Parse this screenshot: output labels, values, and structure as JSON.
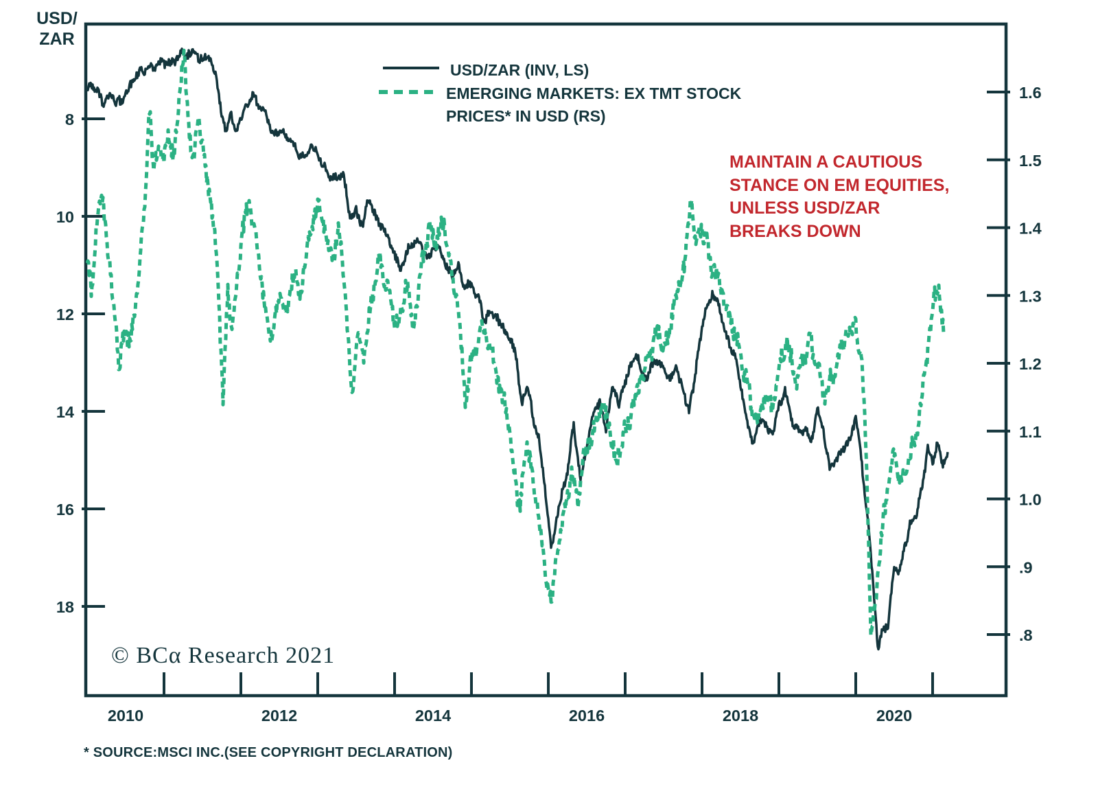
{
  "colors": {
    "dark": "#14353c",
    "green": "#2bb183",
    "red": "#c2272d",
    "background": "#ffffff"
  },
  "left_axis_title": "USD/\nZAR",
  "legend": {
    "items": [
      {
        "label": "USD/ZAR (INV, LS)",
        "style": "solid"
      },
      {
        "label": "EMERGING MARKETS: EX TMT STOCK\nPRICES* IN USD (RS)",
        "style": "dashed"
      }
    ]
  },
  "annotation": {
    "text": "MAINTAIN A CAUTIOUS\nSTANCE ON EM EQUITIES,\nUNLESS USD/ZAR\nBREAKS DOWN"
  },
  "watermark": "© BCα Research 2021",
  "footnote": "* SOURCE:MSCI INC.(SEE COPYRIGHT DECLARATION)",
  "chart_data": {
    "type": "line",
    "title": "",
    "grid": false,
    "legend_position": "top-center",
    "x_axis": {
      "range": [
        2010,
        2022
      ],
      "tick_years": [
        2011,
        2012,
        2013,
        2014,
        2015,
        2016,
        2017,
        2018,
        2019,
        2020,
        2021
      ],
      "labels": [
        "2010",
        "2012",
        "2014",
        "2016",
        "2018",
        "2020"
      ],
      "label_center_years": [
        2010.5,
        2012.5,
        2014.5,
        2016.5,
        2018.5,
        2020.5
      ]
    },
    "left_axis": {
      "title": "USD/ZAR",
      "inverted": true,
      "ticks": [
        8,
        10,
        12,
        14,
        16,
        18
      ],
      "tick_labels": [
        "8",
        "10",
        "12",
        "14",
        "16",
        "18"
      ],
      "top_value": 6.06,
      "bottom_value": 19.83
    },
    "right_axis": {
      "ticks": [
        1.6,
        1.5,
        1.4,
        1.3,
        1.2,
        1.1,
        1.0,
        0.9,
        0.8
      ],
      "tick_labels": [
        "1.6",
        "1.5",
        "1.4",
        "1.3",
        "1.2",
        "1.1",
        "1.0",
        ".9",
        ".8"
      ],
      "top_value": 1.7,
      "bottom_value": 0.71
    },
    "series": [
      {
        "name": "USD/ZAR (INV, LS)",
        "axis": "left",
        "color": "#14353c",
        "line": "solid",
        "width": 3.5,
        "noise": 0.1,
        "points": [
          [
            2010.0,
            7.45
          ],
          [
            2010.06,
            7.28
          ],
          [
            2010.13,
            7.4
          ],
          [
            2010.21,
            7.72
          ],
          [
            2010.29,
            7.52
          ],
          [
            2010.38,
            7.7
          ],
          [
            2010.46,
            7.6
          ],
          [
            2010.54,
            7.35
          ],
          [
            2010.63,
            7.1
          ],
          [
            2010.71,
            7.0
          ],
          [
            2010.79,
            6.95
          ],
          [
            2010.88,
            6.88
          ],
          [
            2010.96,
            6.8
          ],
          [
            2011.04,
            6.9
          ],
          [
            2011.13,
            6.83
          ],
          [
            2011.21,
            6.62
          ],
          [
            2011.29,
            6.72
          ],
          [
            2011.38,
            6.6
          ],
          [
            2011.46,
            6.82
          ],
          [
            2011.54,
            6.7
          ],
          [
            2011.63,
            6.9
          ],
          [
            2011.68,
            7.15
          ],
          [
            2011.75,
            7.95
          ],
          [
            2011.81,
            8.3
          ],
          [
            2011.86,
            7.85
          ],
          [
            2011.92,
            8.2
          ],
          [
            2012.0,
            8.05
          ],
          [
            2012.08,
            7.62
          ],
          [
            2012.17,
            7.55
          ],
          [
            2012.25,
            7.78
          ],
          [
            2012.33,
            7.9
          ],
          [
            2012.42,
            8.38
          ],
          [
            2012.5,
            8.22
          ],
          [
            2012.58,
            8.28
          ],
          [
            2012.67,
            8.48
          ],
          [
            2012.75,
            8.7
          ],
          [
            2012.83,
            8.78
          ],
          [
            2012.92,
            8.58
          ],
          [
            2013.0,
            8.78
          ],
          [
            2013.08,
            8.98
          ],
          [
            2013.17,
            9.2
          ],
          [
            2013.25,
            9.22
          ],
          [
            2013.33,
            9.15
          ],
          [
            2013.42,
            10.0
          ],
          [
            2013.5,
            9.88
          ],
          [
            2013.58,
            10.25
          ],
          [
            2013.66,
            9.65
          ],
          [
            2013.75,
            10.02
          ],
          [
            2013.83,
            10.18
          ],
          [
            2013.92,
            10.45
          ],
          [
            2014.0,
            10.8
          ],
          [
            2014.07,
            11.12
          ],
          [
            2014.17,
            10.72
          ],
          [
            2014.25,
            10.58
          ],
          [
            2014.33,
            10.52
          ],
          [
            2014.42,
            10.9
          ],
          [
            2014.5,
            10.62
          ],
          [
            2014.58,
            10.68
          ],
          [
            2014.67,
            11.0
          ],
          [
            2014.75,
            11.25
          ],
          [
            2014.83,
            11.05
          ],
          [
            2014.92,
            11.45
          ],
          [
            2015.0,
            11.45
          ],
          [
            2015.08,
            11.7
          ],
          [
            2015.17,
            12.1
          ],
          [
            2015.25,
            11.95
          ],
          [
            2015.33,
            12.1
          ],
          [
            2015.42,
            12.3
          ],
          [
            2015.5,
            12.5
          ],
          [
            2015.58,
            12.8
          ],
          [
            2015.65,
            13.9
          ],
          [
            2015.72,
            13.45
          ],
          [
            2015.8,
            14.1
          ],
          [
            2015.88,
            14.55
          ],
          [
            2015.96,
            15.6
          ],
          [
            2016.04,
            16.85
          ],
          [
            2016.1,
            16.2
          ],
          [
            2016.17,
            15.8
          ],
          [
            2016.25,
            15.2
          ],
          [
            2016.33,
            14.3
          ],
          [
            2016.42,
            15.45
          ],
          [
            2016.5,
            14.7
          ],
          [
            2016.58,
            14.05
          ],
          [
            2016.67,
            13.75
          ],
          [
            2016.75,
            14.4
          ],
          [
            2016.83,
            13.5
          ],
          [
            2016.92,
            13.8
          ],
          [
            2017.0,
            13.4
          ],
          [
            2017.08,
            13.0
          ],
          [
            2017.17,
            12.9
          ],
          [
            2017.25,
            13.4
          ],
          [
            2017.33,
            13.1
          ],
          [
            2017.42,
            12.95
          ],
          [
            2017.5,
            13.1
          ],
          [
            2017.58,
            13.35
          ],
          [
            2017.67,
            13.05
          ],
          [
            2017.75,
            13.55
          ],
          [
            2017.83,
            14.0
          ],
          [
            2017.9,
            13.4
          ],
          [
            2017.97,
            12.55
          ],
          [
            2018.05,
            11.95
          ],
          [
            2018.13,
            11.6
          ],
          [
            2018.22,
            11.85
          ],
          [
            2018.32,
            12.5
          ],
          [
            2018.42,
            12.85
          ],
          [
            2018.5,
            13.4
          ],
          [
            2018.58,
            14.2
          ],
          [
            2018.67,
            14.65
          ],
          [
            2018.75,
            14.15
          ],
          [
            2018.83,
            14.35
          ],
          [
            2018.92,
            14.45
          ],
          [
            2019.0,
            13.9
          ],
          [
            2019.08,
            13.55
          ],
          [
            2019.17,
            14.2
          ],
          [
            2019.25,
            14.45
          ],
          [
            2019.33,
            14.35
          ],
          [
            2019.42,
            14.6
          ],
          [
            2019.5,
            14.0
          ],
          [
            2019.58,
            14.35
          ],
          [
            2019.66,
            15.15
          ],
          [
            2019.75,
            15.0
          ],
          [
            2019.83,
            14.75
          ],
          [
            2019.92,
            14.6
          ],
          [
            2020.0,
            14.05
          ],
          [
            2020.08,
            15.05
          ],
          [
            2020.17,
            16.5
          ],
          [
            2020.24,
            17.8
          ],
          [
            2020.29,
            18.9
          ],
          [
            2020.35,
            18.45
          ],
          [
            2020.42,
            18.4
          ],
          [
            2020.5,
            17.1
          ],
          [
            2020.56,
            17.35
          ],
          [
            2020.63,
            16.85
          ],
          [
            2020.71,
            16.3
          ],
          [
            2020.79,
            16.1
          ],
          [
            2020.87,
            15.5
          ],
          [
            2020.94,
            14.7
          ],
          [
            2021.0,
            15.15
          ],
          [
            2021.06,
            14.65
          ],
          [
            2021.13,
            15.1
          ],
          [
            2021.2,
            14.9
          ]
        ]
      },
      {
        "name": "EMERGING MARKETS: EX TMT STOCK PRICES* IN USD (RS)",
        "axis": "right",
        "color": "#2bb183",
        "line": "dashed",
        "dash": [
          9,
          7
        ],
        "width": 5,
        "noise": 0.016,
        "points": [
          [
            2010.0,
            1.37
          ],
          [
            2010.06,
            1.3
          ],
          [
            2010.13,
            1.42
          ],
          [
            2010.21,
            1.43
          ],
          [
            2010.3,
            1.33
          ],
          [
            2010.38,
            1.26
          ],
          [
            2010.42,
            1.19
          ],
          [
            2010.5,
            1.26
          ],
          [
            2010.56,
            1.22
          ],
          [
            2010.65,
            1.31
          ],
          [
            2010.73,
            1.39
          ],
          [
            2010.81,
            1.585
          ],
          [
            2010.86,
            1.48
          ],
          [
            2010.92,
            1.52
          ],
          [
            2011.0,
            1.5
          ],
          [
            2011.06,
            1.54
          ],
          [
            2011.13,
            1.5
          ],
          [
            2011.2,
            1.6
          ],
          [
            2011.26,
            1.645
          ],
          [
            2011.32,
            1.55
          ],
          [
            2011.38,
            1.49
          ],
          [
            2011.45,
            1.58
          ],
          [
            2011.52,
            1.5
          ],
          [
            2011.6,
            1.45
          ],
          [
            2011.66,
            1.38
          ],
          [
            2011.71,
            1.3
          ],
          [
            2011.77,
            1.14
          ],
          [
            2011.83,
            1.32
          ],
          [
            2011.88,
            1.25
          ],
          [
            2011.95,
            1.31
          ],
          [
            2012.03,
            1.4
          ],
          [
            2012.1,
            1.44
          ],
          [
            2012.2,
            1.38
          ],
          [
            2012.3,
            1.29
          ],
          [
            2012.4,
            1.23
          ],
          [
            2012.5,
            1.31
          ],
          [
            2012.58,
            1.27
          ],
          [
            2012.68,
            1.33
          ],
          [
            2012.78,
            1.31
          ],
          [
            2012.88,
            1.38
          ],
          [
            2012.97,
            1.42
          ],
          [
            2013.02,
            1.435
          ],
          [
            2013.12,
            1.38
          ],
          [
            2013.2,
            1.36
          ],
          [
            2013.28,
            1.4
          ],
          [
            2013.36,
            1.3
          ],
          [
            2013.44,
            1.16
          ],
          [
            2013.52,
            1.24
          ],
          [
            2013.6,
            1.21
          ],
          [
            2013.7,
            1.3
          ],
          [
            2013.8,
            1.355
          ],
          [
            2013.9,
            1.31
          ],
          [
            2014.0,
            1.27
          ],
          [
            2014.06,
            1.255
          ],
          [
            2014.15,
            1.32
          ],
          [
            2014.25,
            1.25
          ],
          [
            2014.35,
            1.34
          ],
          [
            2014.45,
            1.4
          ],
          [
            2014.55,
            1.385
          ],
          [
            2014.64,
            1.41
          ],
          [
            2014.75,
            1.32
          ],
          [
            2014.83,
            1.28
          ],
          [
            2014.92,
            1.14
          ],
          [
            2015.0,
            1.2
          ],
          [
            2015.15,
            1.26
          ],
          [
            2015.25,
            1.22
          ],
          [
            2015.35,
            1.17
          ],
          [
            2015.45,
            1.13
          ],
          [
            2015.55,
            1.05
          ],
          [
            2015.63,
            0.98
          ],
          [
            2015.72,
            1.08
          ],
          [
            2015.8,
            1.03
          ],
          [
            2015.88,
            0.97
          ],
          [
            2015.95,
            0.9
          ],
          [
            2016.04,
            0.843
          ],
          [
            2016.12,
            0.93
          ],
          [
            2016.2,
            0.97
          ],
          [
            2016.3,
            1.04
          ],
          [
            2016.38,
            1.0
          ],
          [
            2016.5,
            1.08
          ],
          [
            2016.6,
            1.1
          ],
          [
            2016.7,
            1.14
          ],
          [
            2016.8,
            1.1
          ],
          [
            2016.88,
            1.05
          ],
          [
            2017.0,
            1.1
          ],
          [
            2017.1,
            1.14
          ],
          [
            2017.2,
            1.17
          ],
          [
            2017.3,
            1.21
          ],
          [
            2017.42,
            1.25
          ],
          [
            2017.52,
            1.22
          ],
          [
            2017.62,
            1.28
          ],
          [
            2017.72,
            1.31
          ],
          [
            2017.8,
            1.38
          ],
          [
            2017.86,
            1.455
          ],
          [
            2017.92,
            1.36
          ],
          [
            2018.0,
            1.41
          ],
          [
            2018.08,
            1.36
          ],
          [
            2018.17,
            1.34
          ],
          [
            2018.28,
            1.3
          ],
          [
            2018.38,
            1.26
          ],
          [
            2018.5,
            1.22
          ],
          [
            2018.6,
            1.16
          ],
          [
            2018.72,
            1.11
          ],
          [
            2018.83,
            1.15
          ],
          [
            2018.92,
            1.13
          ],
          [
            2019.0,
            1.19
          ],
          [
            2019.1,
            1.24
          ],
          [
            2019.22,
            1.17
          ],
          [
            2019.32,
            1.21
          ],
          [
            2019.4,
            1.24
          ],
          [
            2019.5,
            1.19
          ],
          [
            2019.58,
            1.15
          ],
          [
            2019.7,
            1.18
          ],
          [
            2019.8,
            1.22
          ],
          [
            2019.88,
            1.245
          ],
          [
            2020.0,
            1.26
          ],
          [
            2020.08,
            1.2
          ],
          [
            2020.14,
            1.05
          ],
          [
            2020.2,
            0.79
          ],
          [
            2020.28,
            0.88
          ],
          [
            2020.36,
            0.97
          ],
          [
            2020.45,
            1.03
          ],
          [
            2020.52,
            1.07
          ],
          [
            2020.6,
            1.02
          ],
          [
            2020.7,
            1.06
          ],
          [
            2020.8,
            1.1
          ],
          [
            2020.88,
            1.16
          ],
          [
            2020.95,
            1.24
          ],
          [
            2021.02,
            1.29
          ],
          [
            2021.08,
            1.32
          ],
          [
            2021.15,
            1.23
          ]
        ]
      }
    ]
  }
}
